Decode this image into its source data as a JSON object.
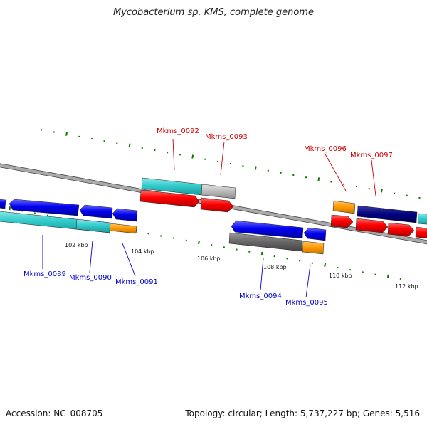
{
  "title": "Mycobacterium sp. KMS, complete genome",
  "footer": {
    "accession": "Accession: NC_008705",
    "summary": "Topology: circular; Length: 5,737,227 bp; Genes: 5,516"
  },
  "axis": {
    "ticks": [
      "102 kbp",
      "104 kbp",
      "106 kbp",
      "108 kbp",
      "110 kbp",
      "112 kbp"
    ]
  },
  "gene_labels": {
    "top": [
      "Mkms_0092",
      "Mkms_0093",
      "Mkms_0096",
      "Mkms_0097"
    ],
    "bottom": [
      "Mkms_0089",
      "Mkms_0090",
      "Mkms_0091",
      "Mkms_0094",
      "Mkms_0095"
    ]
  },
  "colors": {
    "forward_cds": "#ff0000",
    "reverse_cds": "#0000ee",
    "cyan_track": "#33cccc",
    "gray_track": "#bbbbbb",
    "dark_gray_track": "#666666",
    "orange_track": "#ff9900",
    "navy_track": "#000080",
    "green_tick": "#117700",
    "label_red": "#cc0000",
    "label_blue": "#0000cc"
  }
}
